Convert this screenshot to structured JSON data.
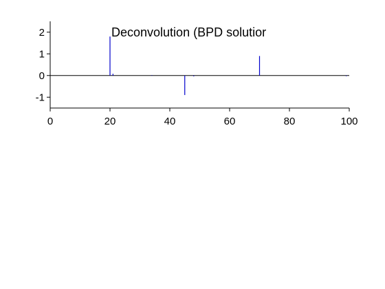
{
  "chart_data": {
    "type": "stem",
    "title": "Deconvolution (BPD solutior",
    "xlabel": "",
    "ylabel": "",
    "xlim": [
      0,
      100
    ],
    "ylim": [
      -1.5,
      2.5
    ],
    "x_ticks": [
      0,
      20,
      40,
      60,
      80,
      100
    ],
    "y_ticks": [
      2,
      1,
      0,
      -1
    ],
    "grid": false,
    "series_color": "#0000cc",
    "points": [
      {
        "x": 20,
        "y": 1.8
      },
      {
        "x": 21,
        "y": 0.08
      },
      {
        "x": 34,
        "y": 0.02
      },
      {
        "x": 45,
        "y": -0.9
      },
      {
        "x": 48,
        "y": -0.04
      },
      {
        "x": 70,
        "y": 0.9
      },
      {
        "x": 99,
        "y": -0.03
      }
    ]
  }
}
